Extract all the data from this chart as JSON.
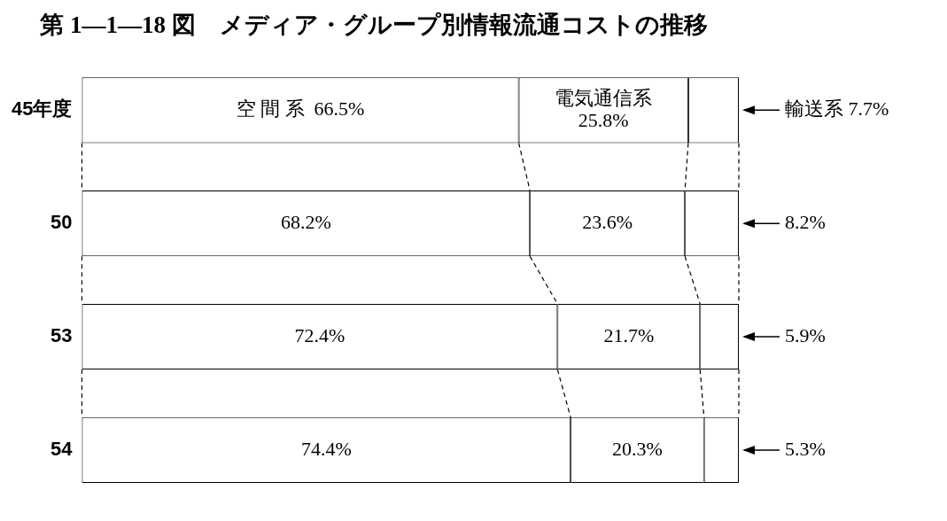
{
  "chart_data": {
    "type": "bar",
    "title": "第 1—1—18 図　メディア・グループ別情報流通コストの推移",
    "orientation": "horizontal",
    "stacked": true,
    "legend": false,
    "grid": false,
    "categories": [
      "45年度",
      "50",
      "53",
      "54"
    ],
    "series": [
      {
        "name": "空 間 系",
        "color": "#ffffff",
        "values": [
          66.5,
          68.2,
          72.4,
          74.4
        ],
        "value_labels": [
          "66.5%",
          "68.2%",
          "72.4%",
          "74.4%"
        ]
      },
      {
        "name": "電気通信系",
        "color": "#ffffff",
        "values": [
          25.8,
          23.6,
          21.7,
          20.3
        ],
        "value_labels": [
          "25.8%",
          "23.6%",
          "21.7%",
          "20.3%"
        ]
      },
      {
        "name": "輸送系",
        "color": "#ffffff",
        "values": [
          7.7,
          8.2,
          5.9,
          5.3
        ],
        "value_labels": [
          "7.7%",
          "8.2%",
          "5.9%",
          "5.3%"
        ]
      }
    ]
  }
}
